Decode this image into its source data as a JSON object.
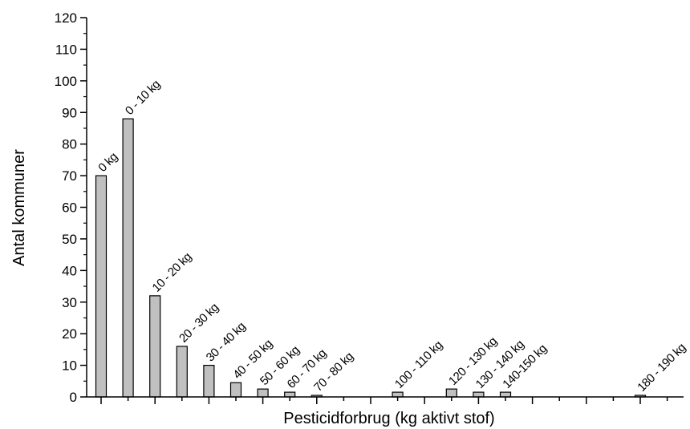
{
  "chart_data": {
    "type": "bar",
    "title": "",
    "xlabel": "Pesticidforbrug (kg aktivt stof)",
    "ylabel": "Antal kommuner",
    "ylim": [
      0,
      120
    ],
    "yticks": [
      "0",
      "10",
      "20",
      "30",
      "40",
      "50",
      "60",
      "70",
      "80",
      "90",
      "100",
      "110",
      "120"
    ],
    "grid": false,
    "legend": "none",
    "bar_color": "#c0c0c0",
    "bar_stroke": "#000000",
    "bars": [
      {
        "label": "0 kg",
        "value": 70
      },
      {
        "label": "0 - 10 kg",
        "value": 88
      },
      {
        "label": "10 - 20 kg",
        "value": 32
      },
      {
        "label": "20 - 30 kg",
        "value": 16
      },
      {
        "label": "30 - 40 kg",
        "value": 10
      },
      {
        "label": "40 - 50 kg",
        "value": 4.5
      },
      {
        "label": "50 - 60 kg",
        "value": 2.5
      },
      {
        "label": "60 - 70 kg",
        "value": 1.5
      },
      {
        "label": "70 - 80 kg",
        "value": 0.5
      },
      {
        "label": "",
        "value": 0
      },
      {
        "label": "",
        "value": 0
      },
      {
        "label": "100 - 110 kg",
        "value": 1.5
      },
      {
        "label": "",
        "value": 0
      },
      {
        "label": "120 - 130 kg",
        "value": 2.5
      },
      {
        "label": "130 - 140 kg",
        "value": 1.5
      },
      {
        "label": "140-150 kg",
        "value": 1.5
      },
      {
        "label": "",
        "value": 0
      },
      {
        "label": "",
        "value": 0
      },
      {
        "label": "",
        "value": 0
      },
      {
        "label": "",
        "value": 0
      },
      {
        "label": "180 - 190 kg",
        "value": 0.5
      },
      {
        "label": "",
        "value": 0
      }
    ]
  }
}
